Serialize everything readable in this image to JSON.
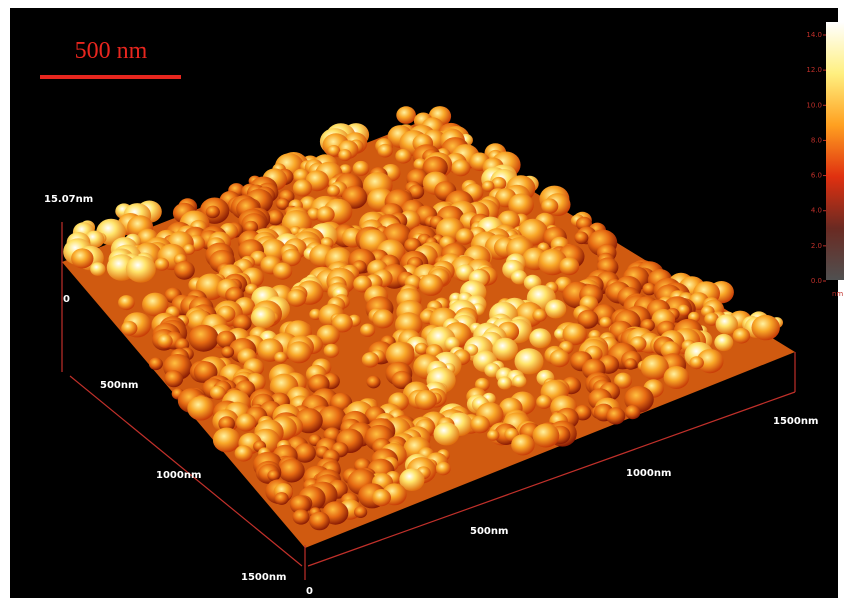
{
  "scale_bar": {
    "label": "500 nm"
  },
  "z_axis": {
    "max_label": "15.07nm",
    "min_label": "0"
  },
  "left_axis": {
    "labels": [
      "500nm",
      "1000nm",
      "1500nm"
    ]
  },
  "front_axis": {
    "labels": [
      "0",
      "500nm",
      "1000nm",
      "1500nm"
    ]
  },
  "colorbar": {
    "ticks": [
      "14.0",
      "12.0",
      "10.0",
      "8.0",
      "6.0",
      "4.0",
      "2.0",
      "0.0"
    ],
    "unit": "nm"
  }
}
